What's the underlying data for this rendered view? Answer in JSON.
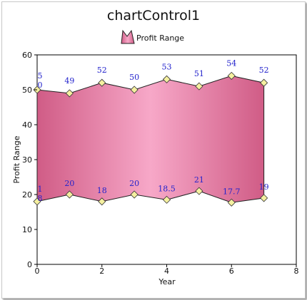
{
  "chart_data": {
    "type": "area",
    "subtype": "range",
    "title": "chartControl1",
    "xlabel": "Year",
    "ylabel": "Profit Range",
    "xlim": [
      0,
      8
    ],
    "ylim": [
      0,
      60
    ],
    "xticks": [
      "0",
      "2",
      "4",
      "6",
      "8"
    ],
    "yticks": [
      "0",
      "10",
      "20",
      "30",
      "40",
      "50",
      "60"
    ],
    "grid": false,
    "legend": "top-center",
    "series": [
      {
        "name": "Profit Range",
        "x": [
          0,
          1,
          2,
          3,
          4,
          5,
          6,
          7
        ],
        "high": [
          50,
          49,
          52,
          50,
          53,
          51,
          54,
          52
        ],
        "low": [
          18,
          20,
          18,
          20,
          18.5,
          21,
          17.7,
          19
        ],
        "high_labels": [
          "5 0",
          "49",
          "52",
          "50",
          "53",
          "51",
          "54",
          "52"
        ],
        "low_labels": [
          "1 8",
          "20",
          "18",
          "20",
          "18.5",
          "21",
          "17.7",
          "19"
        ]
      }
    ],
    "colors": {
      "fill_edge": "#d05c86",
      "fill_center": "#f7a8c8",
      "marker": "#f5f0a0",
      "label": "#2222cc"
    }
  }
}
